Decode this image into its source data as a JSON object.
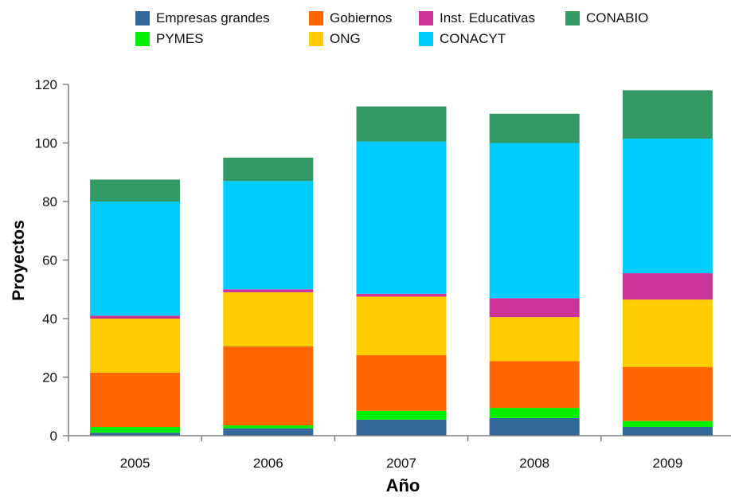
{
  "chart_data": {
    "type": "bar",
    "stacked": true,
    "xlabel": "Año",
    "ylabel": "Proyectos",
    "ylim": [
      0,
      120
    ],
    "yticks": [
      0,
      20,
      40,
      60,
      80,
      100,
      120
    ],
    "grid": false,
    "legend_position": "top",
    "categories": [
      "2005",
      "2006",
      "2007",
      "2008",
      "2009"
    ],
    "series": [
      {
        "name": "Empresas grandes",
        "color": "#336699",
        "values": [
          1,
          2.5,
          5.5,
          6,
          3
        ]
      },
      {
        "name": "PYMES",
        "color": "#00ee00",
        "values": [
          2,
          1,
          3,
          3.5,
          2
        ]
      },
      {
        "name": "Gobiernos",
        "color": "#ff6600",
        "values": [
          18.5,
          27,
          19,
          16,
          18.5
        ]
      },
      {
        "name": "ONG",
        "color": "#ffcc00",
        "values": [
          18.5,
          18.5,
          20,
          15,
          23
        ]
      },
      {
        "name": "Inst. Educativas",
        "color": "#cc3399",
        "values": [
          1,
          1,
          1,
          6.5,
          9
        ]
      },
      {
        "name": "CONACYT",
        "color": "#00ccff",
        "values": [
          39,
          37,
          52,
          53,
          46
        ]
      },
      {
        "name": "CONABIO",
        "color": "#339966",
        "values": [
          7.5,
          8,
          12,
          10,
          16.5
        ]
      }
    ]
  }
}
